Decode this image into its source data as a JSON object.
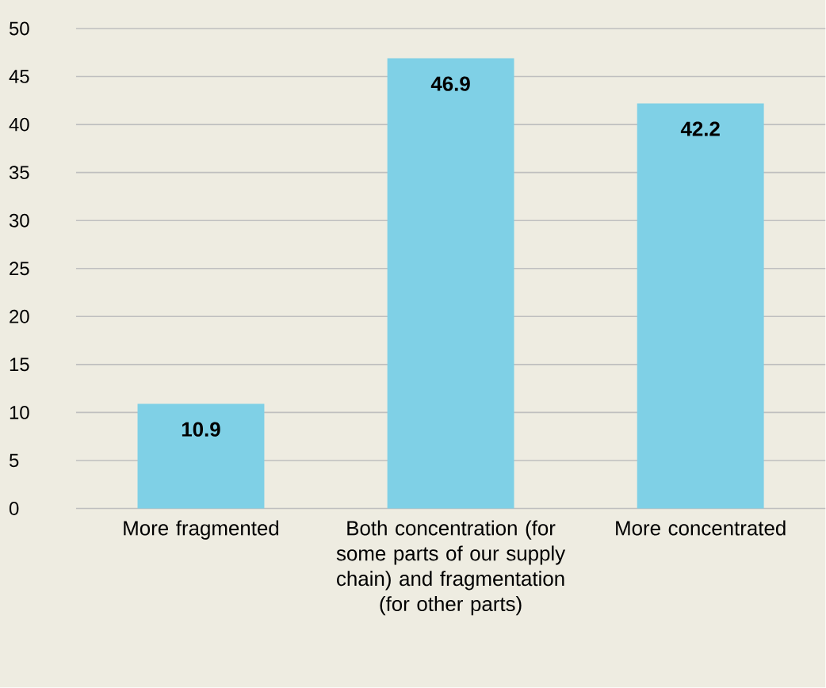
{
  "chart_data": {
    "type": "bar",
    "categories": [
      "More fragmented",
      "Both concentration (for some parts of our supply chain) and fragmentation (for other parts)",
      "More concentrated"
    ],
    "values": [
      10.9,
      46.9,
      42.2
    ],
    "color": "#7fd0e6",
    "ylim": [
      0,
      50
    ],
    "yticks": [
      0,
      5,
      10,
      15,
      20,
      25,
      30,
      35,
      40,
      45,
      50
    ],
    "grid": "y",
    "data_labels": true
  }
}
